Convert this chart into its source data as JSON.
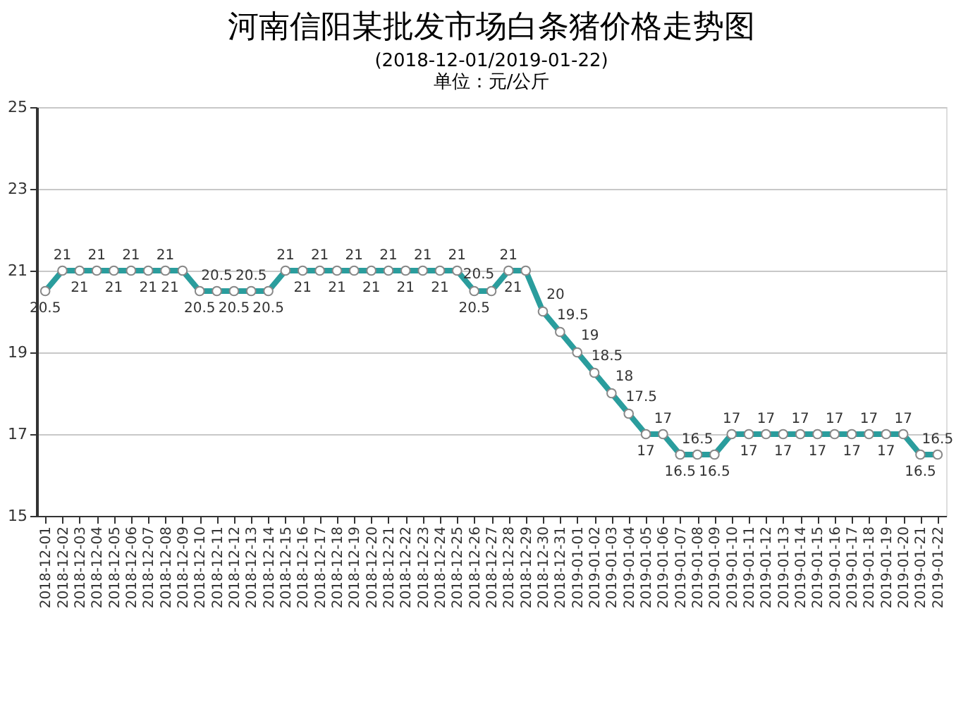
{
  "chart_data": {
    "type": "line",
    "title": "河南信阳某批发市场白条猪价格走势图",
    "subtitle": "(2018-12-01/2019-01-22)",
    "annotations": [
      "单位：元/公斤"
    ],
    "categories": [
      "2018-12-01",
      "2018-12-02",
      "2018-12-03",
      "2018-12-04",
      "2018-12-05",
      "2018-12-06",
      "2018-12-07",
      "2018-12-08",
      "2018-12-09",
      "2018-12-10",
      "2018-12-11",
      "2018-12-12",
      "2018-12-13",
      "2018-12-14",
      "2018-12-15",
      "2018-12-16",
      "2018-12-17",
      "2018-12-18",
      "2018-12-19",
      "2018-12-20",
      "2018-12-21",
      "2018-12-22",
      "2018-12-23",
      "2018-12-24",
      "2018-12-25",
      "2018-12-26",
      "2018-12-27",
      "2018-12-28",
      "2018-12-29",
      "2018-12-30",
      "2018-12-31",
      "2019-01-01",
      "2019-01-02",
      "2019-01-03",
      "2019-01-04",
      "2019-01-05",
      "2019-01-06",
      "2019-01-07",
      "2019-01-08",
      "2019-01-09",
      "2019-01-10",
      "2019-01-11",
      "2019-01-12",
      "2019-01-13",
      "2019-01-14",
      "2019-01-15",
      "2019-01-16",
      "2019-01-17",
      "2019-01-18",
      "2019-01-19",
      "2019-01-20",
      "2019-01-21",
      "2019-01-22"
    ],
    "series": [
      {
        "color": "#2a9d9d",
        "values": [
          20.5,
          21,
          21,
          21,
          21,
          21,
          21,
          21,
          21,
          20.5,
          20.5,
          20.5,
          20.5,
          20.5,
          21,
          21,
          21,
          21,
          21,
          21,
          21,
          21,
          21,
          21,
          21,
          20.5,
          20.5,
          21,
          21,
          20,
          19.5,
          19,
          18.5,
          18,
          17.5,
          17,
          17,
          16.5,
          16.5,
          16.5,
          17,
          17,
          17,
          17,
          17,
          17,
          17,
          17,
          17,
          17,
          17,
          16.5,
          16.5
        ]
      }
    ],
    "ylim": [
      15,
      25
    ],
    "yticks": [
      15,
      17,
      19,
      21,
      23,
      25
    ],
    "grid": "y",
    "marker": "circle",
    "line_style": "solid",
    "data_labels": true,
    "legend": false
  }
}
